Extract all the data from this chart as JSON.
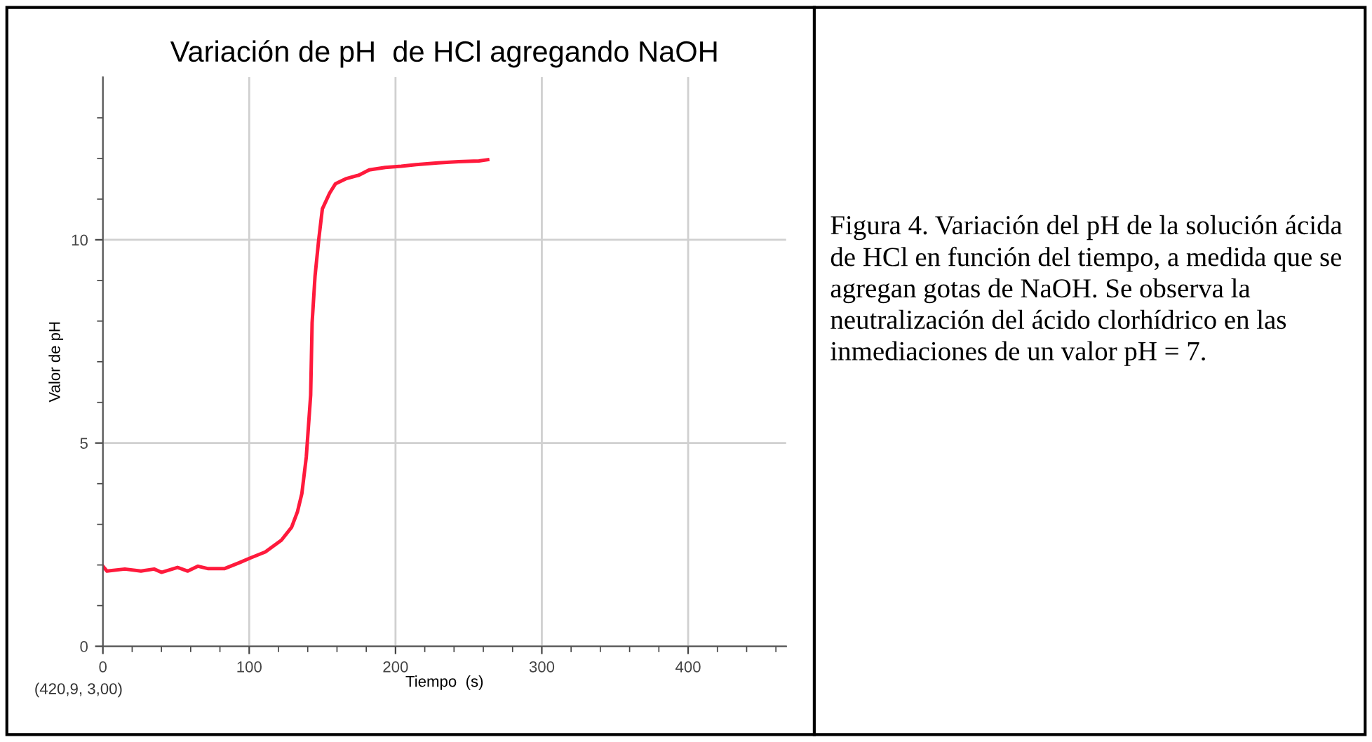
{
  "chart_data": {
    "type": "line",
    "title": "Variación de pH  de HCl agregando NaOH",
    "xlabel": "Tiempo  (s)",
    "ylabel": "Valor de pH",
    "series": [
      {
        "color": "#ff1a3c",
        "x": [
          0,
          2.8,
          15,
          26,
          35,
          40,
          51,
          58,
          65,
          72,
          83,
          93.5,
          100.6,
          111,
          122,
          129,
          133,
          136,
          139,
          142,
          143,
          145,
          147.5,
          150,
          155,
          159,
          166,
          175,
          182,
          193,
          204,
          214,
          229,
          243,
          257,
          263
        ],
        "values": [
          1.97,
          1.85,
          1.9,
          1.85,
          1.9,
          1.82,
          1.94,
          1.85,
          1.97,
          1.91,
          1.91,
          2.06,
          2.17,
          2.32,
          2.61,
          2.93,
          3.31,
          3.76,
          4.65,
          6.18,
          7.96,
          9.11,
          10.0,
          10.76,
          11.15,
          11.38,
          11.5,
          11.59,
          11.72,
          11.78,
          11.81,
          11.85,
          11.89,
          11.92,
          11.94,
          11.97
        ]
      }
    ],
    "xlim": [
      0,
      467
    ],
    "ylim": [
      0,
      14
    ],
    "xticks": [
      0,
      {
        "value": 20,
        "label": null
      },
      {
        "value": 40,
        "label": null
      },
      {
        "value": 60,
        "label": null
      },
      {
        "value": 80,
        "label": null
      },
      100,
      {
        "value": 120,
        "label": null
      },
      {
        "value": 140,
        "label": null
      },
      {
        "value": 160,
        "label": null
      },
      {
        "value": 180,
        "label": null
      },
      200,
      {
        "value": 220,
        "label": null
      },
      {
        "value": 240,
        "label": null
      },
      {
        "value": 260,
        "label": null
      },
      {
        "value": 280,
        "label": null
      },
      300,
      {
        "value": 320,
        "label": null
      },
      {
        "value": 340,
        "label": null
      },
      {
        "value": 360,
        "label": null
      },
      {
        "value": 380,
        "label": null
      },
      400,
      {
        "value": 420,
        "label": null
      },
      {
        "value": 440,
        "label": null
      },
      {
        "value": 460,
        "label": null
      }
    ],
    "yticks": [
      0,
      {
        "value": 1,
        "label": null
      },
      {
        "value": 2,
        "label": null
      },
      {
        "value": 3,
        "label": null
      },
      {
        "value": 4,
        "label": null
      },
      5,
      {
        "value": 6,
        "label": null
      },
      {
        "value": 7,
        "label": null
      },
      {
        "value": 8,
        "label": null
      },
      {
        "value": 9,
        "label": null
      },
      10,
      {
        "value": 11,
        "label": null
      },
      {
        "value": 12,
        "label": null
      },
      {
        "value": 13,
        "label": null
      }
    ],
    "grid": true,
    "marker": "none",
    "line_style": "solid",
    "annotations": [
      "(420,9, 3,00)",
      "Figura 4. Variación del pH de la solución ácida  de HCl en función del tiempo, a medida que se agregan gotas de NaOH. Se observa la neutralización del ácido clorhídrico en las inmediaciones de un valor pH = 7."
    ]
  }
}
